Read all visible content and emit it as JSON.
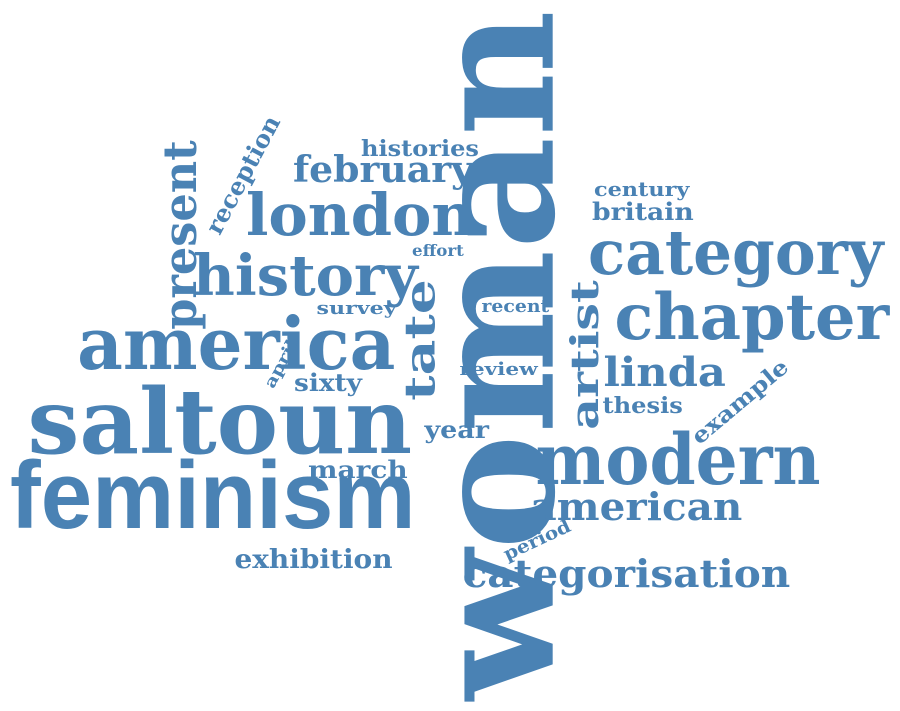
{
  "color": "#4a82b4",
  "words": [
    {
      "text": "woman",
      "name": "word-woman"
    },
    {
      "text": "feminism",
      "name": "word-feminism"
    },
    {
      "text": "saltoun",
      "name": "word-saltoun"
    },
    {
      "text": "america",
      "name": "word-america"
    },
    {
      "text": "modern",
      "name": "word-modern"
    },
    {
      "text": "chapter",
      "name": "word-chapter"
    },
    {
      "text": "category",
      "name": "word-category"
    },
    {
      "text": "london",
      "name": "word-london"
    },
    {
      "text": "history",
      "name": "word-history"
    },
    {
      "text": "present",
      "name": "word-present"
    },
    {
      "text": "tate",
      "name": "word-tate"
    },
    {
      "text": "artist",
      "name": "word-artist"
    },
    {
      "text": "categorisation",
      "name": "word-categorisation"
    },
    {
      "text": "american",
      "name": "word-american"
    },
    {
      "text": "linda",
      "name": "word-linda"
    },
    {
      "text": "february",
      "name": "word-february"
    },
    {
      "text": "histories",
      "name": "word-histories"
    },
    {
      "text": "reception",
      "name": "word-reception"
    },
    {
      "text": "century",
      "name": "word-century"
    },
    {
      "text": "britain",
      "name": "word-britain"
    },
    {
      "text": "effort",
      "name": "word-effort"
    },
    {
      "text": "survey",
      "name": "word-survey"
    },
    {
      "text": "recent",
      "name": "word-recent"
    },
    {
      "text": "review",
      "name": "word-review"
    },
    {
      "text": "april",
      "name": "word-april"
    },
    {
      "text": "sixty",
      "name": "word-sixty"
    },
    {
      "text": "thesis",
      "name": "word-thesis"
    },
    {
      "text": "example",
      "name": "word-example"
    },
    {
      "text": "year",
      "name": "word-year"
    },
    {
      "text": "march",
      "name": "word-march"
    },
    {
      "text": "period",
      "name": "word-period"
    },
    {
      "text": "exhibition",
      "name": "word-exhibition"
    }
  ]
}
